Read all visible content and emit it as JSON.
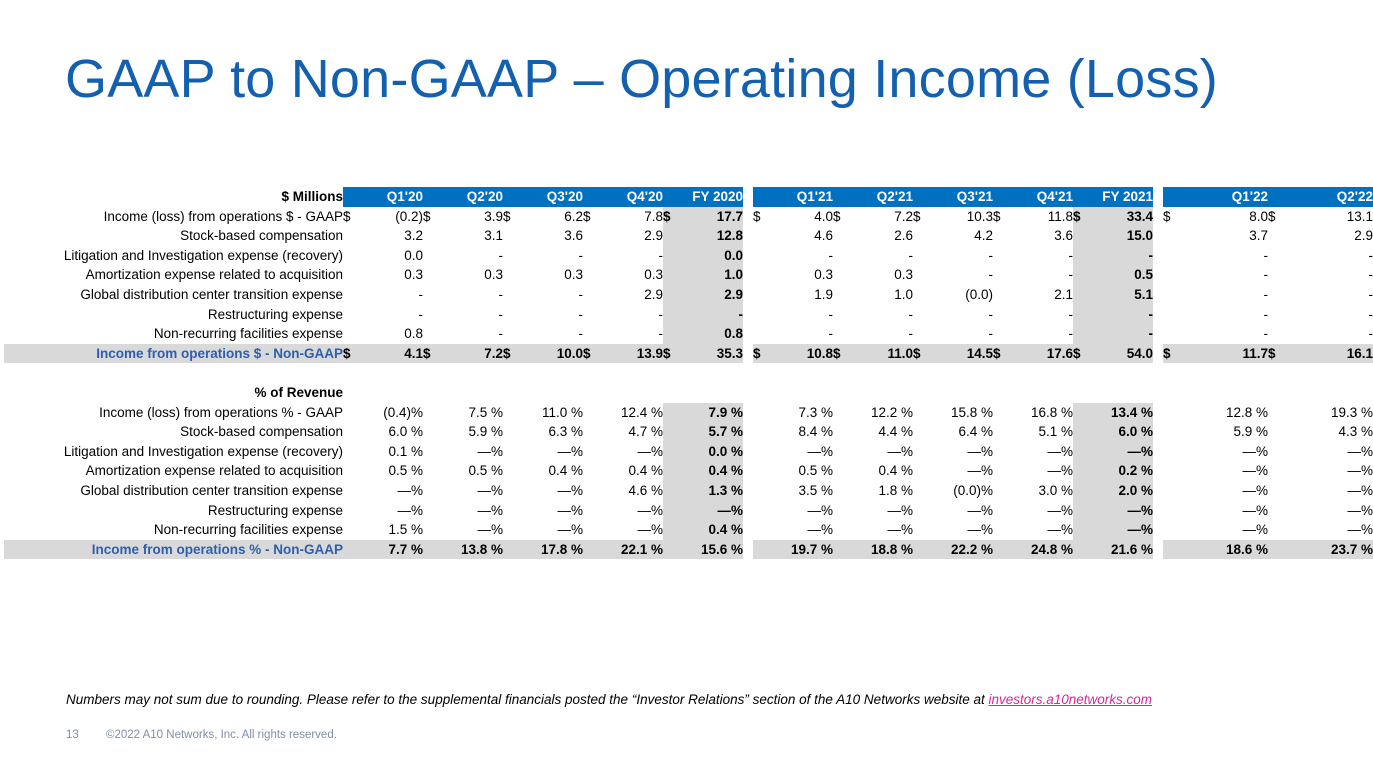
{
  "title": "GAAP to Non-GAAP – Operating Income (Loss)",
  "table": {
    "header_label": "$ Millions",
    "groups": [
      [
        "Q1'20",
        "Q2'20",
        "Q3'20",
        "Q4'20",
        "FY 2020"
      ],
      [
        "Q1'21",
        "Q2'21",
        "Q3'21",
        "Q4'21",
        "FY 2021"
      ],
      [
        "Q1'22",
        "Q2'22"
      ]
    ],
    "dollar_rows": [
      {
        "label": "Income (loss) from operations $ - GAAP",
        "dollar": true,
        "values": [
          "(0.2)",
          "3.9",
          "6.2",
          "7.8",
          "17.7",
          "4.0",
          "7.2",
          "10.3",
          "11.8",
          "33.4",
          "8.0",
          "13.1"
        ]
      },
      {
        "label": "Stock-based compensation",
        "dollar": false,
        "values": [
          "3.2",
          "3.1",
          "3.6",
          "2.9",
          "12.8",
          "4.6",
          "2.6",
          "4.2",
          "3.6",
          "15.0",
          "3.7",
          "2.9"
        ]
      },
      {
        "label": "Litigation and Investigation expense (recovery)",
        "dollar": false,
        "values": [
          "0.0",
          "-",
          "-",
          "-",
          "0.0",
          "-",
          "-",
          "-",
          "-",
          "-",
          "-",
          "-"
        ]
      },
      {
        "label": "Amortization expense related to acquisition",
        "dollar": false,
        "values": [
          "0.3",
          "0.3",
          "0.3",
          "0.3",
          "1.0",
          "0.3",
          "0.3",
          "-",
          "-",
          "0.5",
          "-",
          "-"
        ]
      },
      {
        "label": "Global distribution center transition expense",
        "dollar": false,
        "values": [
          "-",
          "-",
          "-",
          "2.9",
          "2.9",
          "1.9",
          "1.0",
          "(0.0)",
          "2.1",
          "5.1",
          "-",
          "-"
        ]
      },
      {
        "label": "Restructuring expense",
        "dollar": false,
        "values": [
          "-",
          "-",
          "-",
          "-",
          "-",
          "-",
          "-",
          "-",
          "-",
          "-",
          "-",
          "-"
        ]
      },
      {
        "label": "Non-recurring facilities expense",
        "dollar": false,
        "values": [
          "0.8",
          "-",
          "-",
          "-",
          "0.8",
          "-",
          "-",
          "-",
          "-",
          "-",
          "-",
          "-"
        ]
      },
      {
        "label": "Income from operations $ - Non-GAAP",
        "dollar": true,
        "total": true,
        "values": [
          "4.1",
          "7.2",
          "10.0",
          "13.9",
          "35.3",
          "10.8",
          "11.0",
          "14.5",
          "17.6",
          "54.0",
          "11.7",
          "16.1"
        ]
      }
    ],
    "pct_section_label": "% of Revenue",
    "pct_rows": [
      {
        "label": "Income (loss) from operations % - GAAP",
        "values": [
          "(0.4)%",
          "7.5 %",
          "11.0 %",
          "12.4 %",
          "7.9 %",
          "7.3 %",
          "12.2 %",
          "15.8 %",
          "16.8 %",
          "13.4 %",
          "12.8 %",
          "19.3 %"
        ]
      },
      {
        "label": "Stock-based compensation",
        "values": [
          "6.0 %",
          "5.9 %",
          "6.3 %",
          "4.7 %",
          "5.7 %",
          "8.4 %",
          "4.4 %",
          "6.4 %",
          "5.1 %",
          "6.0 %",
          "5.9 %",
          "4.3 %"
        ]
      },
      {
        "label": "Litigation and Investigation expense (recovery)",
        "values": [
          "0.1 %",
          "—%",
          "—%",
          "—%",
          "0.0 %",
          "—%",
          "—%",
          "—%",
          "—%",
          "—%",
          "—%",
          "—%"
        ]
      },
      {
        "label": "Amortization expense related to acquisition",
        "values": [
          "0.5 %",
          "0.5 %",
          "0.4 %",
          "0.4 %",
          "0.4 %",
          "0.5 %",
          "0.4 %",
          "—%",
          "—%",
          "0.2 %",
          "—%",
          "—%"
        ]
      },
      {
        "label": "Global distribution center transition expense",
        "values": [
          "—%",
          "—%",
          "—%",
          "4.6 %",
          "1.3 %",
          "3.5 %",
          "1.8 %",
          "(0.0)%",
          "3.0 %",
          "2.0 %",
          "—%",
          "—%"
        ]
      },
      {
        "label": "Restructuring expense",
        "values": [
          "—%",
          "—%",
          "—%",
          "—%",
          "—%",
          "—%",
          "—%",
          "—%",
          "—%",
          "—%",
          "—%",
          "—%"
        ]
      },
      {
        "label": "Non-recurring facilities expense",
        "values": [
          "1.5 %",
          "—%",
          "—%",
          "—%",
          "0.4 %",
          "—%",
          "—%",
          "—%",
          "—%",
          "—%",
          "—%",
          "—%"
        ]
      },
      {
        "label": "Income from operations % - Non-GAAP",
        "total": true,
        "values": [
          "7.7 %",
          "13.8 %",
          "17.8 %",
          "22.1 %",
          "15.6 %",
          "19.7 %",
          "18.8 %",
          "22.2 %",
          "24.8 %",
          "21.6 %",
          "18.6 %",
          "23.7 %"
        ]
      }
    ]
  },
  "footnote": {
    "text": "Numbers may not sum due to rounding. Please refer to the supplemental financials posted the “Investor Relations” section of the A10 Networks website at ",
    "link_text": "investors.a10networks.com"
  },
  "footer": {
    "page_number": "13",
    "copyright": "©2022 A10 Networks, Inc. All rights reserved."
  },
  "colors": {
    "title": "#1360b0",
    "header_fill": "#0070c0",
    "fy_fill": "#d9d9d9",
    "total_label": "#2e5fac",
    "link": "#d4299b"
  }
}
